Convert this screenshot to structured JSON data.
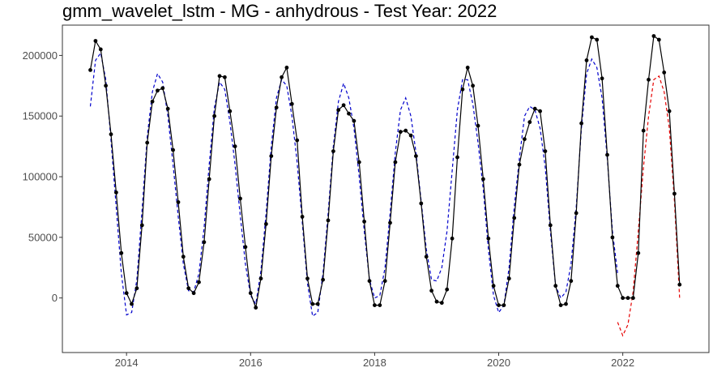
{
  "chart_data": {
    "type": "line",
    "title": "gmm_wavelet_lstm - MG - anhydrous - Test Year: 2022",
    "xlabel": "",
    "ylabel": "",
    "x_start": "2013-06",
    "x_ticks": [
      "2014",
      "2016",
      "2018",
      "2020",
      "2022"
    ],
    "y_ticks": [
      0,
      50000,
      100000,
      150000,
      200000
    ],
    "ylim": [
      -45000,
      225000
    ],
    "grid": false,
    "legend": "none",
    "series": [
      {
        "role": "actual",
        "color": "#000000",
        "style": "solid-with-points",
        "x": [
          "2013-06",
          "2013-07",
          "2013-08",
          "2013-09",
          "2013-10",
          "2013-11",
          "2013-12",
          "2014-01",
          "2014-02",
          "2014-03",
          "2014-04",
          "2014-05",
          "2014-06",
          "2014-07",
          "2014-08",
          "2014-09",
          "2014-10",
          "2014-11",
          "2014-12",
          "2015-01",
          "2015-02",
          "2015-03",
          "2015-04",
          "2015-05",
          "2015-06",
          "2015-07",
          "2015-08",
          "2015-09",
          "2015-10",
          "2015-11",
          "2015-12",
          "2016-01",
          "2016-02",
          "2016-03",
          "2016-04",
          "2016-05",
          "2016-06",
          "2016-07",
          "2016-08",
          "2016-09",
          "2016-10",
          "2016-11",
          "2016-12",
          "2017-01",
          "2017-02",
          "2017-03",
          "2017-04",
          "2017-05",
          "2017-06",
          "2017-07",
          "2017-08",
          "2017-09",
          "2017-10",
          "2017-11",
          "2017-12",
          "2018-01",
          "2018-02",
          "2018-03",
          "2018-04",
          "2018-05",
          "2018-06",
          "2018-07",
          "2018-08",
          "2018-09",
          "2018-10",
          "2018-11",
          "2018-12",
          "2019-01",
          "2019-02",
          "2019-03",
          "2019-04",
          "2019-05",
          "2019-06",
          "2019-07",
          "2019-08",
          "2019-09",
          "2019-10",
          "2019-11",
          "2019-12",
          "2020-01",
          "2020-02",
          "2020-03",
          "2020-04",
          "2020-05",
          "2020-06",
          "2020-07",
          "2020-08",
          "2020-09",
          "2020-10",
          "2020-11",
          "2020-12",
          "2021-01",
          "2021-02",
          "2021-03",
          "2021-04",
          "2021-05",
          "2021-06",
          "2021-07",
          "2021-08",
          "2021-09",
          "2021-10",
          "2021-11",
          "2021-12",
          "2022-01",
          "2022-02",
          "2022-03",
          "2022-04",
          "2022-05",
          "2022-06",
          "2022-07",
          "2022-08",
          "2022-09",
          "2022-10",
          "2022-11",
          "2022-12"
        ],
        "y": [
          188000,
          212000,
          205000,
          175000,
          135000,
          87000,
          37000,
          4000,
          -5000,
          8000,
          60000,
          128000,
          162000,
          171000,
          173000,
          156000,
          122000,
          79000,
          34000,
          8000,
          4000,
          13000,
          46000,
          98000,
          150000,
          183000,
          182000,
          154000,
          125000,
          82000,
          42000,
          4000,
          -8000,
          16000,
          61000,
          117000,
          157000,
          182000,
          190000,
          160000,
          130000,
          67000,
          16000,
          -5000,
          -5000,
          15000,
          64000,
          121000,
          155000,
          159000,
          152000,
          146000,
          112000,
          63000,
          14000,
          -6000,
          -6000,
          14000,
          62000,
          112000,
          137000,
          138000,
          134000,
          117000,
          78000,
          34000,
          6000,
          -3000,
          -4000,
          7000,
          49000,
          116000,
          172000,
          190000,
          175000,
          142000,
          98000,
          49000,
          10000,
          -6000,
          -6000,
          16000,
          66000,
          110000,
          131000,
          145000,
          156000,
          154000,
          121000,
          60000,
          10000,
          -6000,
          -5000,
          14000,
          70000,
          144000,
          196000,
          215000,
          213000,
          181000,
          118000,
          50000,
          10000,
          0,
          0,
          0,
          37000,
          138000,
          180000,
          216000,
          213000,
          186000,
          154000,
          86000,
          11000
        ]
      },
      {
        "role": "fitted",
        "color": "#0000cc",
        "style": "dashed",
        "x": [
          "2013-06",
          "2013-07",
          "2013-08",
          "2013-09",
          "2013-10",
          "2013-11",
          "2013-12",
          "2014-01",
          "2014-02",
          "2014-03",
          "2014-04",
          "2014-05",
          "2014-06",
          "2014-07",
          "2014-08",
          "2014-09",
          "2014-10",
          "2014-11",
          "2014-12",
          "2015-01",
          "2015-02",
          "2015-03",
          "2015-04",
          "2015-05",
          "2015-06",
          "2015-07",
          "2015-08",
          "2015-09",
          "2015-10",
          "2015-11",
          "2015-12",
          "2016-01",
          "2016-02",
          "2016-03",
          "2016-04",
          "2016-05",
          "2016-06",
          "2016-07",
          "2016-08",
          "2016-09",
          "2016-10",
          "2016-11",
          "2016-12",
          "2017-01",
          "2017-02",
          "2017-03",
          "2017-04",
          "2017-05",
          "2017-06",
          "2017-07",
          "2017-08",
          "2017-09",
          "2017-10",
          "2017-11",
          "2017-12",
          "2018-01",
          "2018-02",
          "2018-03",
          "2018-04",
          "2018-05",
          "2018-06",
          "2018-07",
          "2018-08",
          "2018-09",
          "2018-10",
          "2018-11",
          "2018-12",
          "2019-01",
          "2019-02",
          "2019-03",
          "2019-04",
          "2019-05",
          "2019-06",
          "2019-07",
          "2019-08",
          "2019-09",
          "2019-10",
          "2019-11",
          "2019-12",
          "2020-01",
          "2020-02",
          "2020-03",
          "2020-04",
          "2020-05",
          "2020-06",
          "2020-07",
          "2020-08",
          "2020-09",
          "2020-10",
          "2020-11",
          "2020-12",
          "2021-01",
          "2021-02",
          "2021-03",
          "2021-04",
          "2021-05",
          "2021-06",
          "2021-07",
          "2021-08",
          "2021-09",
          "2021-10",
          "2021-11",
          "2021-12"
        ],
        "y": [
          158000,
          196000,
          202000,
          180000,
          130000,
          75000,
          20000,
          -14000,
          -12000,
          15000,
          72000,
          133000,
          170000,
          185000,
          178000,
          150000,
          110000,
          67000,
          28000,
          6000,
          5000,
          20000,
          58000,
          110000,
          157000,
          178000,
          172000,
          145000,
          110000,
          68000,
          28000,
          2000,
          -5000,
          22000,
          70000,
          125000,
          165000,
          180000,
          175000,
          150000,
          112000,
          62000,
          12000,
          -15000,
          -12000,
          20000,
          70000,
          125000,
          162000,
          177000,
          165000,
          140000,
          100000,
          55000,
          15000,
          0,
          2000,
          25000,
          70000,
          120000,
          155000,
          165000,
          150000,
          120000,
          80000,
          40000,
          15000,
          14000,
          25000,
          55000,
          105000,
          155000,
          180000,
          180000,
          160000,
          128000,
          90000,
          40000,
          2000,
          -12000,
          -6000,
          25000,
          75000,
          115000,
          150000,
          158000,
          155000,
          140000,
          108000,
          55000,
          10000,
          0,
          5000,
          28000,
          75000,
          140000,
          185000,
          197000,
          190000,
          165000,
          115000,
          55000,
          20000
        ]
      },
      {
        "role": "forecast",
        "color": "#e60000",
        "style": "dashed",
        "x": [
          "2021-12",
          "2022-01",
          "2022-02",
          "2022-03",
          "2022-04",
          "2022-05",
          "2022-06",
          "2022-07",
          "2022-08",
          "2022-09",
          "2022-10",
          "2022-11",
          "2022-12"
        ],
        "y": [
          -20000,
          -31000,
          -22000,
          5000,
          55000,
          108000,
          150000,
          180000,
          183000,
          170000,
          140000,
          80000,
          0
        ]
      }
    ]
  }
}
